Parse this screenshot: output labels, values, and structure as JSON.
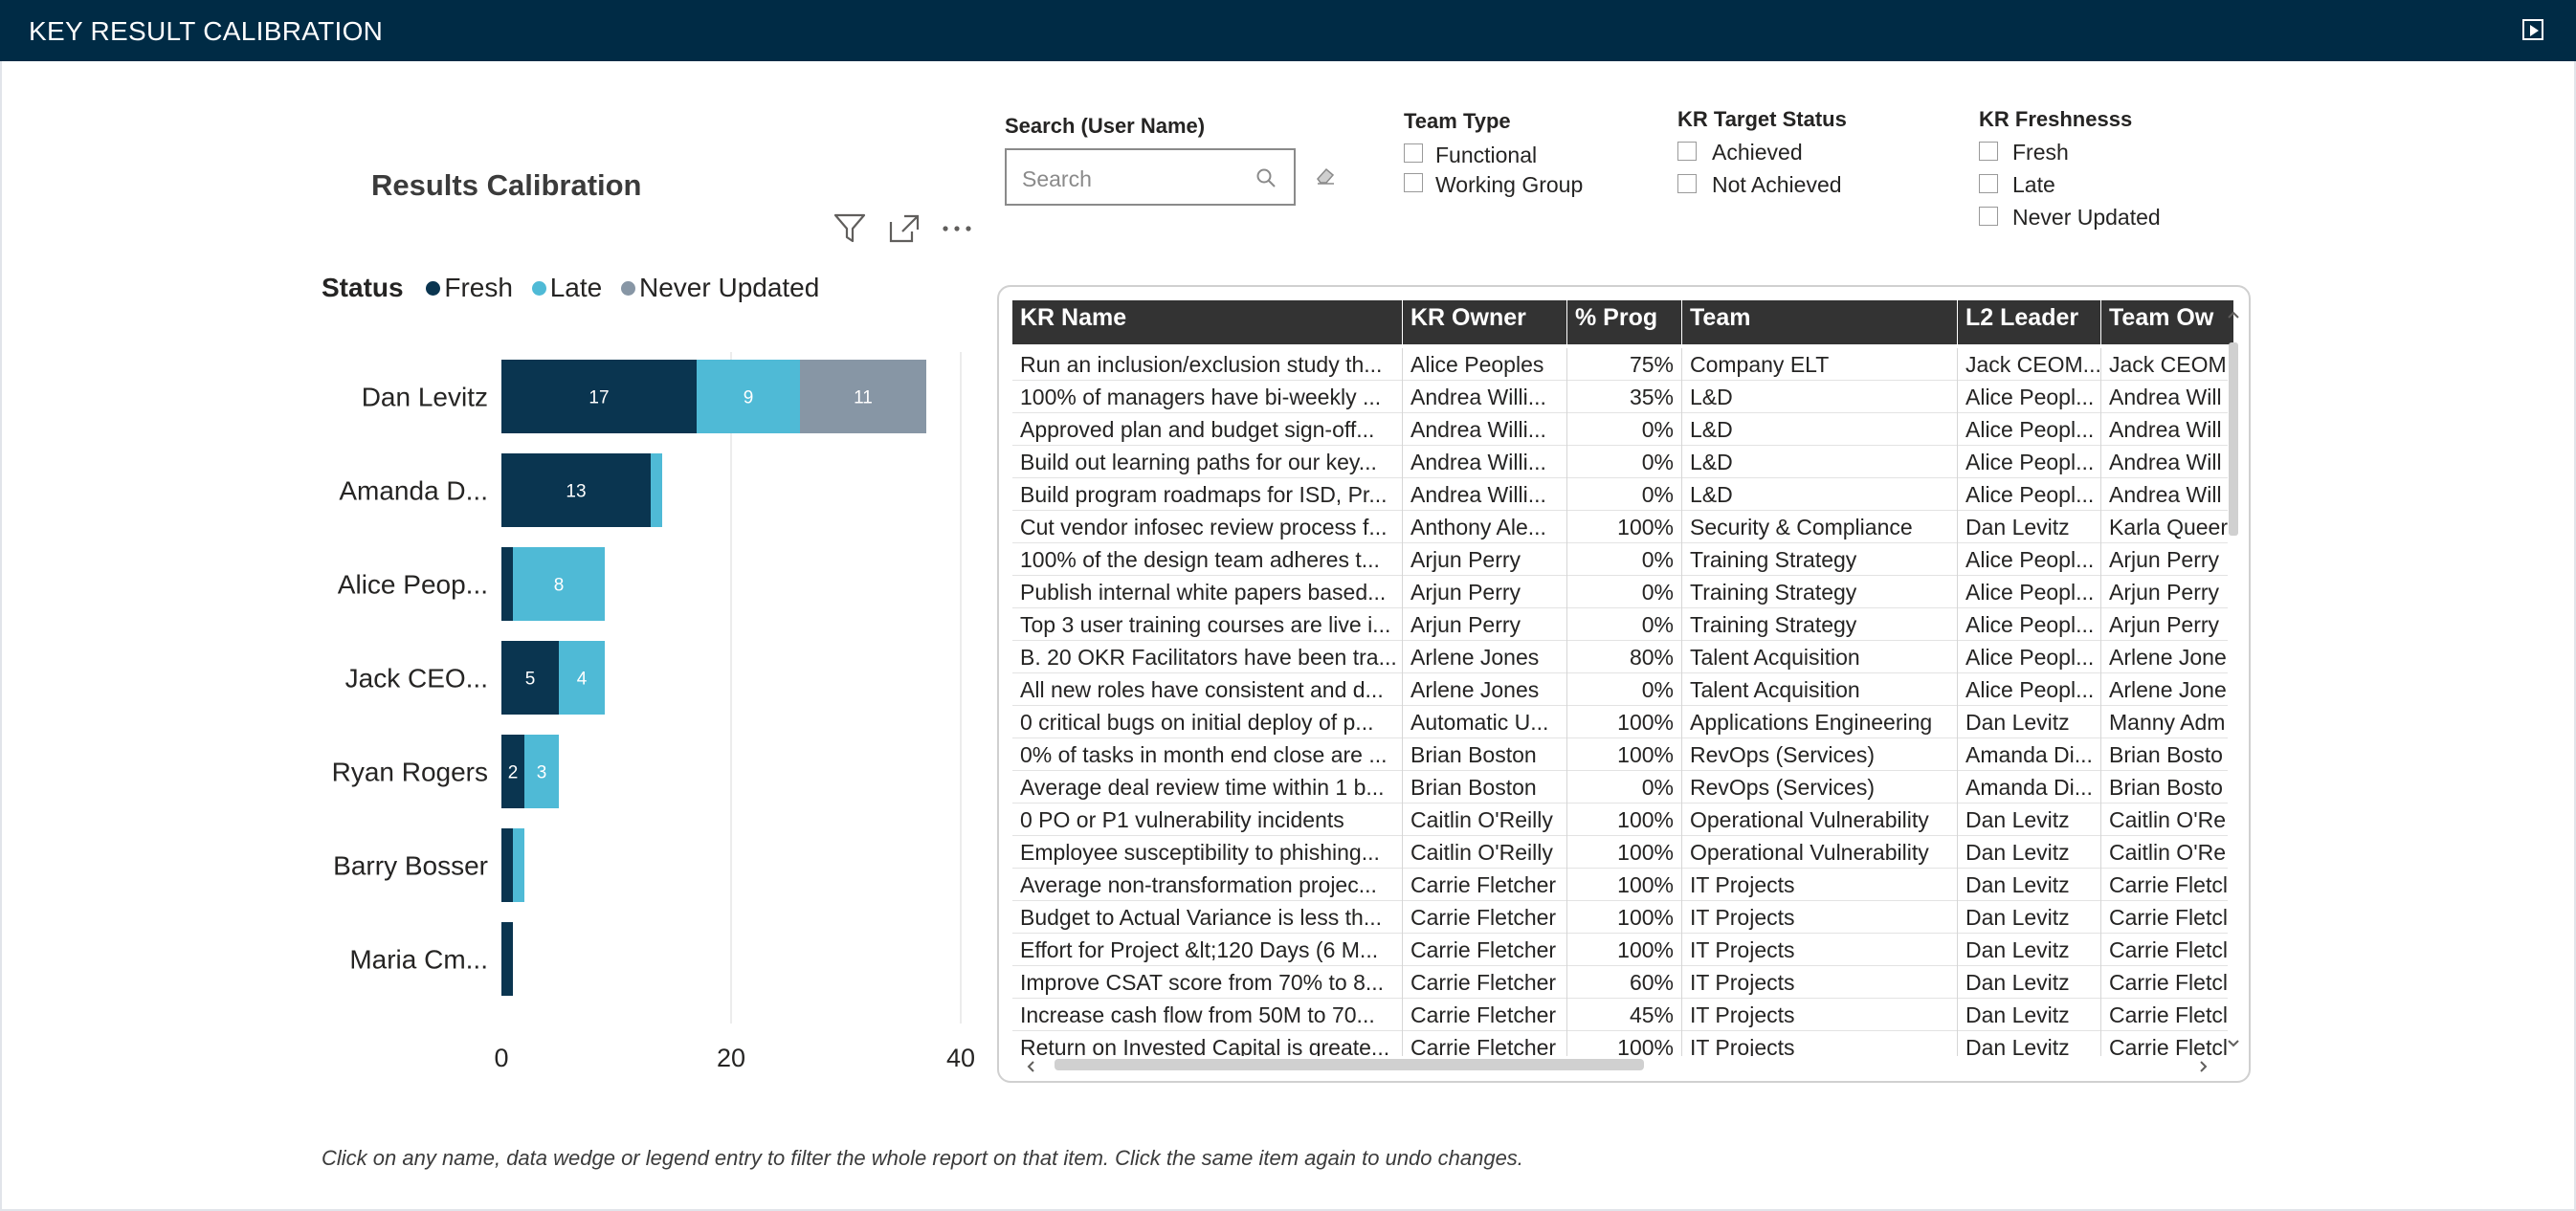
{
  "header": {
    "title": "KEY RESULT CALIBRATION"
  },
  "chart_data": {
    "type": "bar",
    "orientation": "horizontal",
    "stacked": true,
    "title": "Results Calibration",
    "legend_title": "Status",
    "legend_position": "top-left",
    "categories": [
      "Dan Levitz",
      "Amanda D...",
      "Alice Peop...",
      "Jack CEO...",
      "Ryan Rogers",
      "Barry Bosser",
      "Maria Cm..."
    ],
    "series": [
      {
        "name": "Fresh",
        "color": "#0a3550",
        "values": [
          17,
          13,
          1,
          5,
          2,
          1,
          1
        ]
      },
      {
        "name": "Late",
        "color": "#4fbad6",
        "values": [
          9,
          1,
          8,
          4,
          3,
          1,
          0
        ]
      },
      {
        "name": "Never Updated",
        "color": "#8796a5",
        "values": [
          11,
          0,
          0,
          0,
          0,
          0,
          0
        ]
      }
    ],
    "data_labels": [
      [
        "17",
        "9",
        "11"
      ],
      [
        "13",
        "",
        ""
      ],
      [
        "",
        "8",
        ""
      ],
      [
        "5",
        "4",
        ""
      ],
      [
        "2",
        "3",
        ""
      ],
      [
        "",
        "",
        ""
      ],
      [
        "",
        "",
        ""
      ]
    ],
    "x_ticks": [
      0,
      20,
      40
    ],
    "xlim": [
      0,
      40
    ],
    "grid": true
  },
  "visual_header": {
    "filter_icon": "filter-icon",
    "focus_icon": "focus-mode-icon",
    "more_icon": "more-options-icon"
  },
  "slicers": {
    "search": {
      "label": "Search (User Name)",
      "placeholder": "Search"
    },
    "team_type": {
      "label": "Team Type",
      "options": [
        "Functional",
        "Working Group"
      ]
    },
    "kr_target_status": {
      "label": "KR Target Status",
      "options": [
        "Achieved",
        "Not Achieved"
      ]
    },
    "kr_freshness": {
      "label": "KR Freshnesss",
      "options": [
        "Fresh",
        "Late",
        "Never Updated"
      ]
    }
  },
  "table": {
    "columns": [
      "KR Name",
      "KR Owner",
      "% Prog",
      "Team",
      "L2 Leader",
      "Team Ow"
    ],
    "sort_column": "KR Owner",
    "rows": [
      [
        "Run an inclusion/exclusion study th...",
        "Alice Peoples",
        "75%",
        "Company ELT",
        "Jack CEOM...",
        "Jack CEOM..."
      ],
      [
        "100% of managers have bi-weekly ...",
        "Andrea Willi...",
        "35%",
        "L&D",
        "Alice Peopl...",
        "Andrea Will"
      ],
      [
        "Approved plan and budget sign-off...",
        "Andrea Willi...",
        "0%",
        "L&D",
        "Alice Peopl...",
        "Andrea Will"
      ],
      [
        "Build out learning paths for our key...",
        "Andrea Willi...",
        "0%",
        "L&D",
        "Alice Peopl...",
        "Andrea Will"
      ],
      [
        "Build program roadmaps for ISD, Pr...",
        "Andrea Willi...",
        "0%",
        "L&D",
        "Alice Peopl...",
        "Andrea Will"
      ],
      [
        "Cut vendor infosec review process f...",
        "Anthony Ale...",
        "100%",
        "Security & Compliance",
        "Dan Levitz",
        "Karla Queer"
      ],
      [
        "100% of the design team adheres t...",
        "Arjun Perry",
        "0%",
        "Training Strategy",
        "Alice Peopl...",
        "Arjun Perry"
      ],
      [
        "Publish internal white papers based...",
        "Arjun Perry",
        "0%",
        "Training Strategy",
        "Alice Peopl...",
        "Arjun Perry"
      ],
      [
        "Top 3 user training courses are live i...",
        "Arjun Perry",
        "0%",
        "Training Strategy",
        "Alice Peopl...",
        "Arjun Perry"
      ],
      [
        "B. 20 OKR Facilitators have been tra...",
        "Arlene Jones",
        "80%",
        "Talent Acquisition",
        "Alice Peopl...",
        "Arlene Jone"
      ],
      [
        "All new roles have consistent and d...",
        "Arlene Jones",
        "0%",
        "Talent Acquisition",
        "Alice Peopl...",
        "Arlene Jone"
      ],
      [
        "0 critical bugs on initial deploy of p...",
        "Automatic U...",
        "100%",
        "Applications Engineering",
        "Dan Levitz",
        "Manny Adm"
      ],
      [
        "0% of tasks in month end close are ...",
        "Brian Boston",
        "100%",
        "RevOps (Services)",
        "Amanda Di...",
        "Brian Bosto"
      ],
      [
        "Average deal review time within 1 b...",
        "Brian Boston",
        "0%",
        "RevOps (Services)",
        "Amanda Di...",
        "Brian Bosto"
      ],
      [
        "0 PO or P1 vulnerability incidents",
        "Caitlin O'Reilly",
        "100%",
        "Operational Vulnerability",
        "Dan Levitz",
        "Caitlin O'Re"
      ],
      [
        "Employee susceptibility to phishing...",
        "Caitlin O'Reilly",
        "100%",
        "Operational Vulnerability",
        "Dan Levitz",
        "Caitlin O'Re"
      ],
      [
        "Average non-transformation projec...",
        "Carrie Fletcher",
        "100%",
        "IT Projects",
        "Dan Levitz",
        "Carrie Fletcl"
      ],
      [
        "Budget to Actual Variance is less th...",
        "Carrie Fletcher",
        "100%",
        "IT Projects",
        "Dan Levitz",
        "Carrie Fletcl"
      ],
      [
        "Effort for Project &lt;120 Days (6 M...",
        "Carrie Fletcher",
        "100%",
        "IT Projects",
        "Dan Levitz",
        "Carrie Fletcl"
      ],
      [
        "Improve CSAT score from 70% to 8...",
        "Carrie Fletcher",
        "60%",
        "IT Projects",
        "Dan Levitz",
        "Carrie Fletcl"
      ],
      [
        "Increase cash flow from 50M to 70...",
        "Carrie Fletcher",
        "45%",
        "IT Projects",
        "Dan Levitz",
        "Carrie Fletcl"
      ],
      [
        "Return on Invested Capital is greate...",
        "Carrie Fletcher",
        "100%",
        "IT Projects",
        "Dan Levitz",
        "Carrie Fletcl"
      ]
    ]
  },
  "footnote": "Click on any name, data wedge or legend entry to filter the whole report on that item. Click the same item again to undo changes."
}
